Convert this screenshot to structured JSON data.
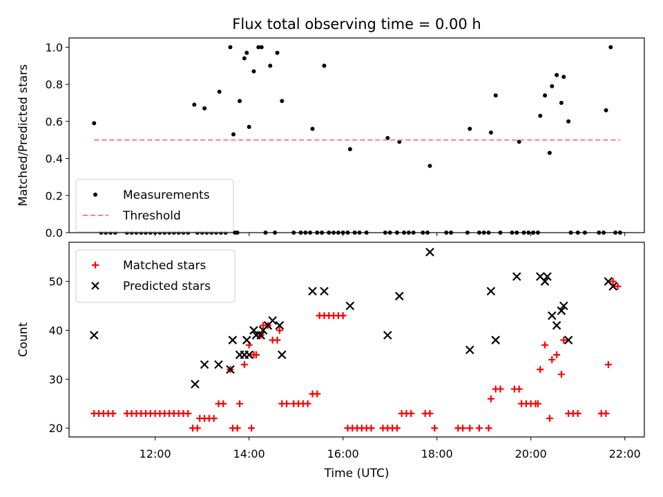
{
  "chart_data": [
    {
      "type": "scatter",
      "title": "Flux total observing time = 0.00 h",
      "ylabel": "Matched/Predicted stars",
      "xlabel": "",
      "ylim": [
        0,
        1.05
      ],
      "yticks": [
        "0.0",
        "0.2",
        "0.4",
        "0.6",
        "0.8",
        "1.0"
      ],
      "grid": false,
      "legend": "lower-left",
      "series": [
        {
          "name": "Measurements",
          "color": "#000000",
          "marker": "dot",
          "points": [
            [
              "10:42",
              0.59
            ],
            [
              "10:51",
              0.0
            ],
            [
              "10:57",
              0.0
            ],
            [
              "11:03",
              0.0
            ],
            [
              "11:09",
              0.0
            ],
            [
              "11:24",
              0.0
            ],
            [
              "11:30",
              0.0
            ],
            [
              "11:36",
              0.0
            ],
            [
              "11:42",
              0.0
            ],
            [
              "11:48",
              0.0
            ],
            [
              "11:54",
              0.0
            ],
            [
              "12:00",
              0.0
            ],
            [
              "12:06",
              0.0
            ],
            [
              "12:12",
              0.0
            ],
            [
              "12:18",
              0.0
            ],
            [
              "12:24",
              0.0
            ],
            [
              "12:30",
              0.0
            ],
            [
              "12:36",
              0.0
            ],
            [
              "12:42",
              0.0
            ],
            [
              "12:50",
              0.69
            ],
            [
              "12:54",
              0.0
            ],
            [
              "13:00",
              0.0
            ],
            [
              "13:03",
              0.67
            ],
            [
              "13:06",
              0.0
            ],
            [
              "13:12",
              0.0
            ],
            [
              "13:18",
              0.0
            ],
            [
              "13:24",
              0.0
            ],
            [
              "13:22",
              0.76
            ],
            [
              "13:30",
              0.0
            ],
            [
              "13:36",
              1.0
            ],
            [
              "13:40",
              0.53
            ],
            [
              "13:42",
              0.0
            ],
            [
              "13:45",
              0.0
            ],
            [
              "13:48",
              0.71
            ],
            [
              "13:54",
              0.94
            ],
            [
              "13:57",
              0.97
            ],
            [
              "14:00",
              0.57
            ],
            [
              "14:06",
              0.87
            ],
            [
              "14:12",
              1.0
            ],
            [
              "14:16",
              1.0
            ],
            [
              "14:21",
              0.0
            ],
            [
              "14:27",
              0.9
            ],
            [
              "14:33",
              0.0
            ],
            [
              "14:36",
              0.97
            ],
            [
              "14:42",
              0.71
            ],
            [
              "14:57",
              0.0
            ],
            [
              "15:06",
              0.0
            ],
            [
              "15:12",
              0.0
            ],
            [
              "15:18",
              0.0
            ],
            [
              "15:21",
              0.56
            ],
            [
              "15:27",
              0.0
            ],
            [
              "15:33",
              0.0
            ],
            [
              "15:36",
              0.9
            ],
            [
              "15:42",
              0.0
            ],
            [
              "15:48",
              0.0
            ],
            [
              "15:54",
              0.0
            ],
            [
              "16:00",
              0.0
            ],
            [
              "16:06",
              0.0
            ],
            [
              "16:09",
              0.45
            ],
            [
              "16:15",
              0.0
            ],
            [
              "16:21",
              0.0
            ],
            [
              "16:30",
              0.0
            ],
            [
              "16:54",
              0.0
            ],
            [
              "16:57",
              0.51
            ],
            [
              "17:00",
              0.0
            ],
            [
              "17:09",
              0.0
            ],
            [
              "17:12",
              0.49
            ],
            [
              "17:18",
              0.0
            ],
            [
              "17:24",
              0.0
            ],
            [
              "17:30",
              0.0
            ],
            [
              "17:42",
              0.0
            ],
            [
              "17:48",
              0.0
            ],
            [
              "17:51",
              0.36
            ],
            [
              "18:12",
              0.0
            ],
            [
              "18:18",
              0.0
            ],
            [
              "18:39",
              0.0
            ],
            [
              "18:42",
              0.56
            ],
            [
              "18:54",
              0.0
            ],
            [
              "19:00",
              0.0
            ],
            [
              "19:06",
              0.0
            ],
            [
              "19:09",
              0.54
            ],
            [
              "19:15",
              0.74
            ],
            [
              "19:21",
              0.0
            ],
            [
              "19:36",
              0.0
            ],
            [
              "19:42",
              0.0
            ],
            [
              "19:45",
              0.49
            ],
            [
              "19:51",
              0.0
            ],
            [
              "19:57",
              0.0
            ],
            [
              "20:03",
              0.0
            ],
            [
              "20:09",
              0.0
            ],
            [
              "20:12",
              0.63
            ],
            [
              "20:18",
              0.74
            ],
            [
              "20:24",
              0.43
            ],
            [
              "20:27",
              0.79
            ],
            [
              "20:33",
              0.85
            ],
            [
              "20:39",
              0.7
            ],
            [
              "20:42",
              0.84
            ],
            [
              "20:48",
              0.6
            ],
            [
              "20:51",
              0.0
            ],
            [
              "21:00",
              0.0
            ],
            [
              "21:09",
              0.0
            ],
            [
              "21:27",
              0.0
            ],
            [
              "21:33",
              0.0
            ],
            [
              "21:36",
              0.66
            ],
            [
              "21:42",
              1.0
            ],
            [
              "21:48",
              0.0
            ],
            [
              "21:54",
              0.0
            ]
          ]
        },
        {
          "name": "Threshold",
          "color": "#ff7f7f",
          "style": "dashed",
          "points": [
            [
              "10:42",
              0.5
            ],
            [
              "21:54",
              0.5
            ]
          ]
        }
      ]
    },
    {
      "type": "scatter",
      "title": "",
      "ylabel": "Count",
      "xlabel": "Time (UTC)",
      "ylim": [
        18.2,
        58
      ],
      "yticks": [
        "20",
        "30",
        "40",
        "50"
      ],
      "xticks": [
        "12:00",
        "14:00",
        "16:00",
        "18:00",
        "20:00",
        "22:00"
      ],
      "grid": false,
      "legend": "top-left",
      "series": [
        {
          "name": "Matched stars",
          "color": "#ff0000",
          "marker": "plus",
          "points": [
            [
              "10:42",
              23
            ],
            [
              "10:48",
              23
            ],
            [
              "10:54",
              23
            ],
            [
              "11:00",
              23
            ],
            [
              "11:06",
              23
            ],
            [
              "11:24",
              23
            ],
            [
              "11:30",
              23
            ],
            [
              "11:36",
              23
            ],
            [
              "11:42",
              23
            ],
            [
              "11:48",
              23
            ],
            [
              "11:54",
              23
            ],
            [
              "12:00",
              23
            ],
            [
              "12:06",
              23
            ],
            [
              "12:12",
              23
            ],
            [
              "12:18",
              23
            ],
            [
              "12:24",
              23
            ],
            [
              "12:30",
              23
            ],
            [
              "12:36",
              23
            ],
            [
              "12:42",
              23
            ],
            [
              "12:48",
              20
            ],
            [
              "12:54",
              20
            ],
            [
              "12:57",
              22
            ],
            [
              "13:03",
              22
            ],
            [
              "13:09",
              22
            ],
            [
              "13:15",
              22
            ],
            [
              "13:21",
              25
            ],
            [
              "13:27",
              25
            ],
            [
              "13:36",
              32
            ],
            [
              "13:39",
              20
            ],
            [
              "13:45",
              20
            ],
            [
              "13:48",
              25
            ],
            [
              "13:54",
              33
            ],
            [
              "14:00",
              37
            ],
            [
              "14:03",
              20
            ],
            [
              "14:06",
              35
            ],
            [
              "14:09",
              35
            ],
            [
              "14:15",
              39
            ],
            [
              "14:18",
              41
            ],
            [
              "14:24",
              41
            ],
            [
              "14:30",
              38
            ],
            [
              "14:36",
              38
            ],
            [
              "14:39",
              40
            ],
            [
              "14:42",
              25
            ],
            [
              "14:48",
              25
            ],
            [
              "14:57",
              25
            ],
            [
              "15:03",
              25
            ],
            [
              "15:09",
              25
            ],
            [
              "15:15",
              25
            ],
            [
              "15:21",
              27
            ],
            [
              "15:27",
              27
            ],
            [
              "15:30",
              43
            ],
            [
              "15:36",
              43
            ],
            [
              "15:42",
              43
            ],
            [
              "15:48",
              43
            ],
            [
              "15:54",
              43
            ],
            [
              "16:00",
              43
            ],
            [
              "16:06",
              20
            ],
            [
              "16:12",
              20
            ],
            [
              "16:18",
              20
            ],
            [
              "16:24",
              20
            ],
            [
              "16:30",
              20
            ],
            [
              "16:36",
              20
            ],
            [
              "16:51",
              20
            ],
            [
              "16:57",
              20
            ],
            [
              "17:03",
              20
            ],
            [
              "17:09",
              20
            ],
            [
              "17:15",
              23
            ],
            [
              "17:21",
              23
            ],
            [
              "17:27",
              23
            ],
            [
              "17:45",
              23
            ],
            [
              "17:51",
              23
            ],
            [
              "17:57",
              20
            ],
            [
              "18:27",
              20
            ],
            [
              "18:33",
              20
            ],
            [
              "18:42",
              20
            ],
            [
              "18:54",
              20
            ],
            [
              "19:06",
              20
            ],
            [
              "19:09",
              26
            ],
            [
              "19:15",
              28
            ],
            [
              "19:21",
              28
            ],
            [
              "19:39",
              28
            ],
            [
              "19:45",
              28
            ],
            [
              "19:48",
              25
            ],
            [
              "19:54",
              25
            ],
            [
              "20:00",
              25
            ],
            [
              "20:06",
              25
            ],
            [
              "20:09",
              25
            ],
            [
              "20:12",
              32
            ],
            [
              "20:18",
              37
            ],
            [
              "20:24",
              22
            ],
            [
              "20:27",
              34
            ],
            [
              "20:33",
              35
            ],
            [
              "20:39",
              31
            ],
            [
              "20:42",
              38
            ],
            [
              "20:48",
              23
            ],
            [
              "20:54",
              23
            ],
            [
              "21:00",
              23
            ],
            [
              "21:30",
              23
            ],
            [
              "21:36",
              23
            ],
            [
              "21:39",
              33
            ],
            [
              "21:45",
              50
            ],
            [
              "21:51",
              49
            ]
          ]
        },
        {
          "name": "Predicted stars",
          "color": "#000000",
          "marker": "x",
          "points": [
            [
              "10:42",
              39
            ],
            [
              "12:51",
              29
            ],
            [
              "13:03",
              33
            ],
            [
              "13:21",
              33
            ],
            [
              "13:36",
              32
            ],
            [
              "13:39",
              38
            ],
            [
              "13:48",
              35
            ],
            [
              "13:54",
              35
            ],
            [
              "13:57",
              38
            ],
            [
              "14:00",
              35
            ],
            [
              "14:06",
              40
            ],
            [
              "14:09",
              39
            ],
            [
              "14:15",
              39
            ],
            [
              "14:18",
              40
            ],
            [
              "14:24",
              41
            ],
            [
              "14:30",
              42
            ],
            [
              "14:39",
              41
            ],
            [
              "14:42",
              35
            ],
            [
              "15:21",
              48
            ],
            [
              "15:36",
              48
            ],
            [
              "16:09",
              45
            ],
            [
              "16:57",
              39
            ],
            [
              "17:12",
              47
            ],
            [
              "17:51",
              56
            ],
            [
              "18:42",
              36
            ],
            [
              "19:09",
              48
            ],
            [
              "19:15",
              38
            ],
            [
              "19:42",
              51
            ],
            [
              "20:12",
              51
            ],
            [
              "20:18",
              50
            ],
            [
              "20:21",
              51
            ],
            [
              "20:27",
              43
            ],
            [
              "20:33",
              41
            ],
            [
              "20:39",
              44
            ],
            [
              "20:42",
              45
            ],
            [
              "20:48",
              38
            ],
            [
              "21:39",
              50
            ],
            [
              "21:45",
              49
            ]
          ]
        }
      ]
    }
  ]
}
